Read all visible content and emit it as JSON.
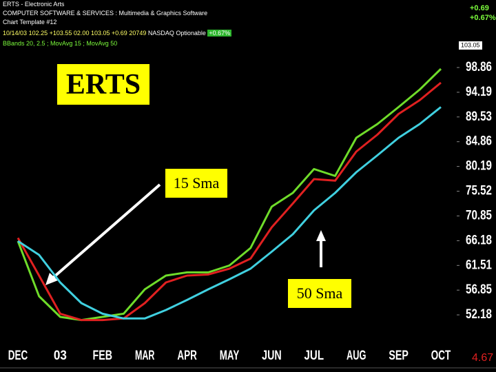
{
  "chart_data": {
    "type": "line",
    "title": "ERTS",
    "header": {
      "window_title": "ERTS - Electronic Arts",
      "industry": "COMPUTER SOFTWARE & SERVICES : Multimedia & Graphics Software",
      "template": "Chart Template #12",
      "date": "10/14/03",
      "quote": [
        "102.25",
        "+103.55",
        "02.00",
        "103.05",
        "+0.69",
        "20749"
      ],
      "exchange": "NASDAQ Optionable",
      "change_pct": "+0.67%",
      "indicators": "BBands 20, 2.5 ; MovAvg 15 ; MovAvg 50"
    },
    "right_panel": {
      "change": "+0.69",
      "change_pct": "+0.67%",
      "last": "103.05"
    },
    "scale_step": "4.67",
    "categories": [
      "DEC",
      null,
      "03",
      null,
      "FEB",
      null,
      "MAR",
      null,
      "APR",
      null,
      "MAY",
      null,
      "JUN",
      null,
      "JUL",
      null,
      "AUG",
      null,
      "SEP",
      null,
      "OCT"
    ],
    "series": [
      {
        "color": "#6fdc2a",
        "values": [
          66.1,
          55.7,
          51.8,
          51.2,
          51.8,
          52.4,
          57.0,
          59.6,
          60.2,
          60.2,
          61.5,
          64.8,
          72.6,
          75.2,
          79.7,
          78.4,
          85.6,
          88.2,
          91.4,
          94.7,
          98.6
        ]
      },
      {
        "name": "15 Sma",
        "color": "#e02020",
        "values": [
          66.7,
          59.6,
          52.4,
          51.2,
          51.2,
          51.5,
          54.4,
          58.3,
          59.6,
          59.8,
          60.9,
          62.8,
          68.7,
          73.2,
          77.8,
          77.5,
          83.0,
          86.2,
          90.1,
          92.7,
          96.0
        ]
      },
      {
        "name": "50 Sma",
        "color": "#40d0e0",
        "values": [
          66.1,
          63.5,
          58.3,
          54.4,
          52.4,
          51.5,
          51.5,
          53.1,
          55.0,
          57.0,
          58.9,
          60.9,
          64.1,
          67.4,
          71.9,
          75.2,
          79.1,
          82.3,
          85.6,
          88.2,
          91.4
        ]
      }
    ],
    "ylim": [
      46.6,
      103.8
    ],
    "yticks": [
      98.86,
      94.19,
      89.53,
      84.86,
      80.19,
      75.52,
      70.85,
      66.18,
      61.51,
      56.85,
      52.18
    ]
  }
}
